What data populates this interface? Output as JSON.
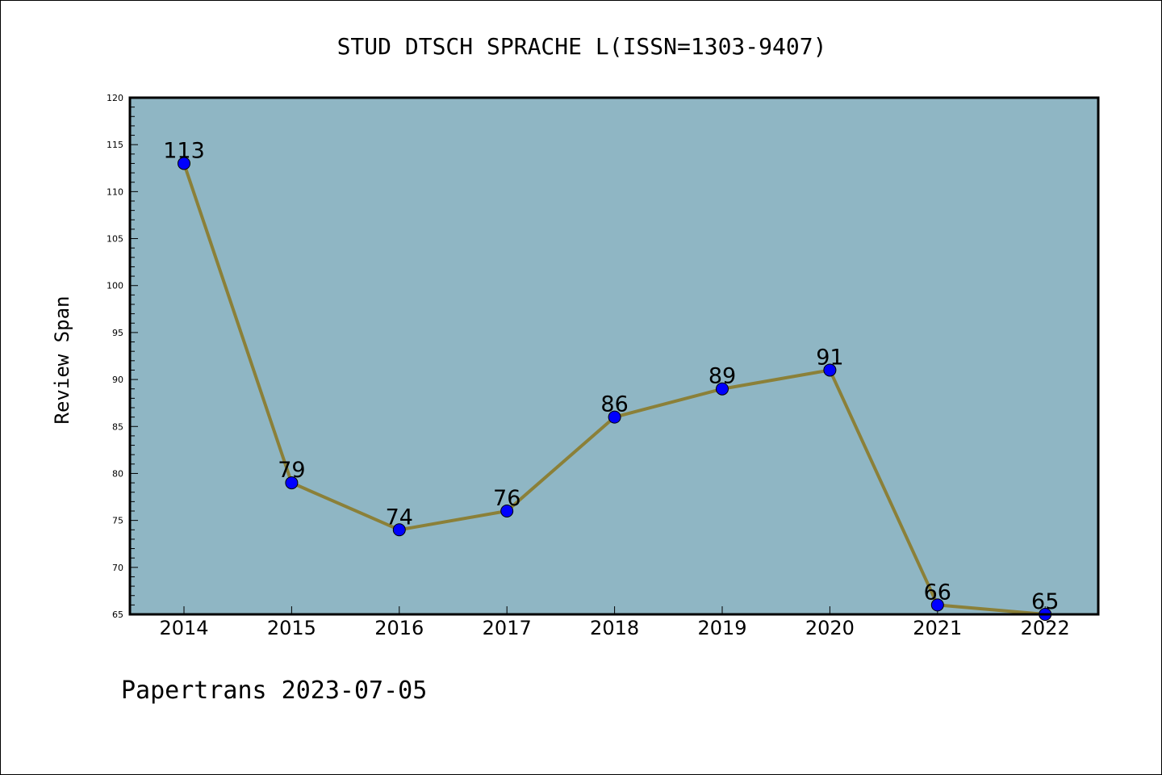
{
  "chart_data": {
    "type": "line",
    "title": "STUD DTSCH SPRACHE L(ISSN=1303-9407)",
    "ylabel": "Review Span",
    "xlabel": "",
    "categories": [
      "2014",
      "2015",
      "2016",
      "2017",
      "2018",
      "2019",
      "2020",
      "2021",
      "2022"
    ],
    "series": [
      {
        "values": [
          113,
          79,
          74,
          76,
          86,
          89,
          91,
          66,
          65
        ]
      }
    ],
    "data_labels": [
      "113",
      "79",
      "74",
      "76",
      "86",
      "89",
      "91",
      "66",
      "65"
    ],
    "ylim": [
      65,
      120
    ],
    "yticks": [
      "65",
      "70",
      "75",
      "80",
      "85",
      "90",
      "95",
      "100",
      "105",
      "110",
      "115",
      "120"
    ],
    "grid": false,
    "colors": {
      "plot_background": "#8fb6c4",
      "line": "#8b8038",
      "marker": "#0000ff"
    }
  },
  "footer": "Papertrans 2023-07-05"
}
